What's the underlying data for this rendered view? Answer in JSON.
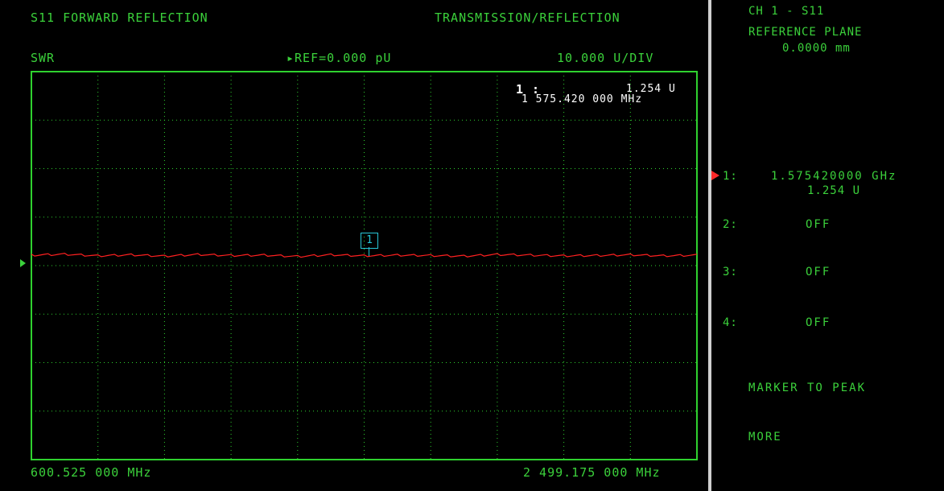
{
  "header": {
    "left_title": "S11 FORWARD REFLECTION",
    "right_title": "TRANSMISSION/REFLECTION",
    "format": "SWR",
    "ref_value": "▸REF=0.000 pU",
    "scale": "10.000 U/DIV"
  },
  "marker_readout": {
    "label": "1 :",
    "value": "1.254 U",
    "frequency": "1 575.420 000 MHz",
    "trace_flag": "1"
  },
  "footer": {
    "start_freq": "600.525 000 MHz",
    "stop_freq": "2 499.175 000 MHz"
  },
  "side_panel": {
    "channel": "CH 1 - S11",
    "ref_plane_label": "REFERENCE PLANE",
    "ref_plane_value": "0.0000 mm",
    "markers": [
      {
        "label": "1:",
        "value": "1.575420000 GHz",
        "sub": "1.254 U",
        "active": true
      },
      {
        "label": "2:",
        "value": "OFF"
      },
      {
        "label": "3:",
        "value": "OFF"
      },
      {
        "label": "4:",
        "value": "OFF"
      }
    ],
    "softkeys": [
      "MARKER TO PEAK",
      "MORE"
    ]
  },
  "colors": {
    "text": "#3bd13b",
    "trace": "#ff2020",
    "marker": "#27c6d6",
    "active_marker": "#ff2a2a"
  },
  "chart_data": {
    "type": "line",
    "x_range": [
      600.525,
      2499.175
    ],
    "x_unit": "MHz",
    "ylim_div": 10,
    "series": [
      {
        "values": [
          1.254,
          1.257,
          1.252,
          1.255,
          1.251,
          1.256,
          1.253,
          1.254,
          1.25,
          1.255,
          1.252,
          1.254,
          1.253,
          1.251,
          1.256,
          1.254,
          1.252,
          1.253,
          1.255,
          1.252,
          1.254
        ]
      }
    ]
  }
}
